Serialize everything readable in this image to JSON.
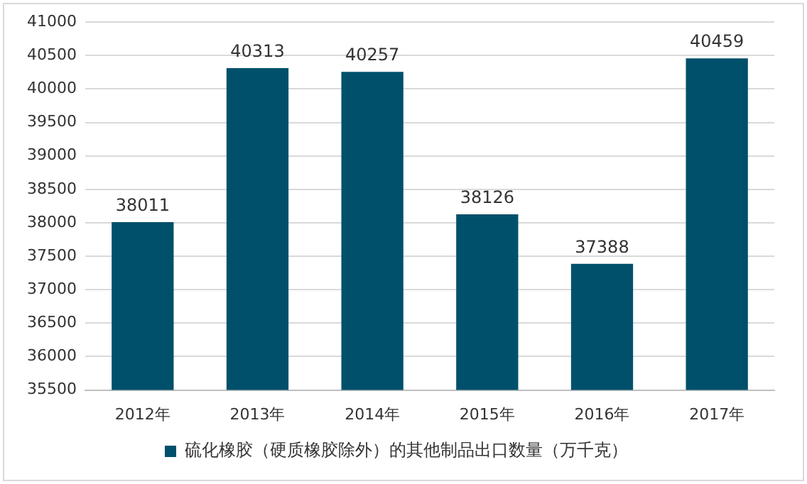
{
  "chart_data": {
    "type": "bar",
    "categories": [
      "2012年",
      "2013年",
      "2014年",
      "2015年",
      "2016年",
      "2017年"
    ],
    "series": [
      {
        "name": "硫化橡胶（硬质橡胶除外）的其他制品出口数量（万千克）",
        "color": "#00506b",
        "values": [
          38011,
          40313,
          40257,
          38126,
          37388,
          40459
        ]
      }
    ],
    "ylim": [
      35500,
      41000
    ],
    "yticks": [
      35500,
      36000,
      36500,
      37000,
      37500,
      38000,
      38500,
      39000,
      39500,
      40000,
      40500,
      41000
    ],
    "grid": "y",
    "legend": "bottom",
    "data_labels": true
  }
}
